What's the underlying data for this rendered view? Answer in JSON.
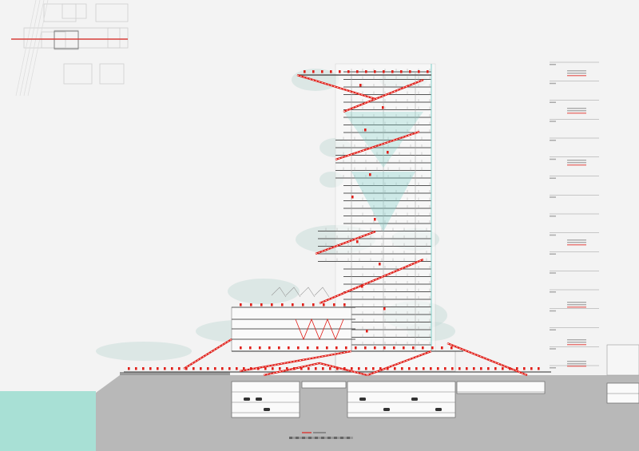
{
  "drawing": {
    "type": "architectural-section",
    "colors": {
      "background": "#f3f3f3",
      "ground": "#b8b8b8",
      "water": "#a8e0d5",
      "section_line": "#d8403a",
      "circulation": "#e0201a",
      "structure": "#555555",
      "glazing": "#7fcfc8",
      "vegetation": "#c9dcd8"
    },
    "key_plan": {
      "section_cut_shown": true
    },
    "level_table": {
      "rows": 17
    },
    "scale_bar": {
      "segments": 20
    }
  }
}
